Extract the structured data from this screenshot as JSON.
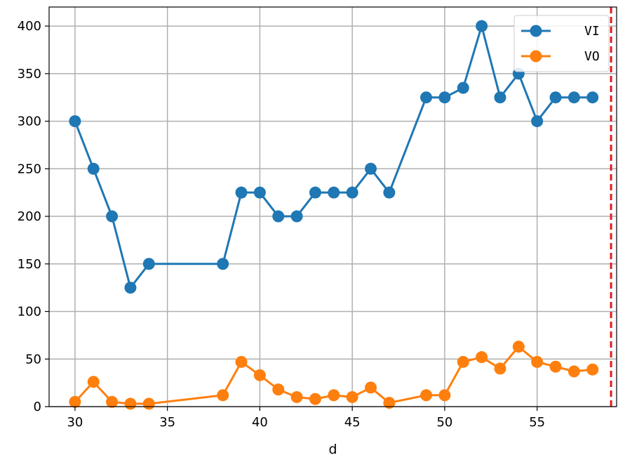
{
  "chart_data": {
    "type": "line",
    "title": "",
    "xlabel": "d",
    "ylabel": "",
    "xlim": [
      28.6,
      59.3
    ],
    "ylim": [
      0,
      420
    ],
    "xticks": [
      30,
      35,
      40,
      45,
      50,
      55
    ],
    "yticks": [
      0,
      50,
      100,
      150,
      200,
      250,
      300,
      350,
      400
    ],
    "grid": true,
    "legend_position": "top-right",
    "vertical_line": {
      "x": 59,
      "color": "#e31a1c",
      "style": "dashed"
    },
    "series": [
      {
        "name": "VI",
        "color": "#1f77b4",
        "x": [
          30,
          31,
          32,
          33,
          34,
          38,
          39,
          40,
          41,
          42,
          43,
          44,
          45,
          46,
          47,
          49,
          50,
          51,
          52,
          53,
          54,
          55,
          56,
          57,
          58
        ],
        "values": [
          300,
          250,
          200,
          125,
          150,
          150,
          225,
          225,
          200,
          200,
          225,
          225,
          225,
          250,
          225,
          325,
          325,
          335,
          400,
          325,
          350,
          300,
          325,
          325,
          325
        ]
      },
      {
        "name": "VO",
        "color": "#ff7f0e",
        "x": [
          30,
          31,
          32,
          33,
          34,
          38,
          39,
          40,
          41,
          42,
          43,
          44,
          45,
          46,
          47,
          49,
          50,
          51,
          52,
          53,
          54,
          55,
          56,
          57,
          58
        ],
        "values": [
          5,
          26,
          5,
          3,
          3,
          12,
          47,
          33,
          18,
          10,
          8,
          12,
          10,
          20,
          4,
          12,
          12,
          47,
          52,
          40,
          63,
          47,
          42,
          37,
          39
        ]
      }
    ]
  }
}
